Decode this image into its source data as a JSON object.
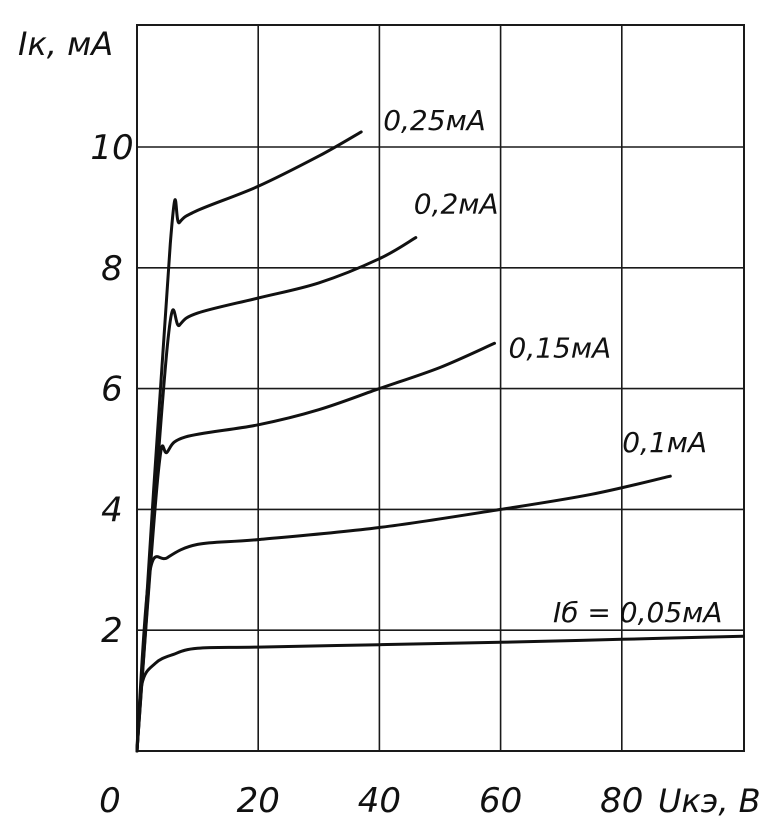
{
  "chart_data": {
    "type": "line",
    "ylabel": "Iк, мA",
    "xlabel": "Uкэ, B",
    "origin_label": "0",
    "xlim": [
      0,
      100
    ],
    "ylim": [
      0,
      12
    ],
    "x_ticks": [
      20,
      40,
      60,
      80
    ],
    "x_tick_labels": [
      "20",
      "40",
      "60",
      "80"
    ],
    "y_ticks": [
      2,
      4,
      6,
      8,
      10
    ],
    "y_tick_labels": [
      "2",
      "4",
      "6",
      "8",
      "10"
    ],
    "grid": true,
    "legend": "labels at curve ends",
    "series": [
      {
        "name": "Iб = 0,05мA",
        "points": [
          [
            0,
            0
          ],
          [
            0.8,
            1.1
          ],
          [
            3,
            1.45
          ],
          [
            6,
            1.6
          ],
          [
            10,
            1.7
          ],
          [
            20,
            1.72
          ],
          [
            40,
            1.76
          ],
          [
            60,
            1.8
          ],
          [
            80,
            1.85
          ],
          [
            100,
            1.9
          ]
        ]
      },
      {
        "name": "0,1мA",
        "points": [
          [
            0,
            0
          ],
          [
            2,
            2.9
          ],
          [
            5,
            3.2
          ],
          [
            10,
            3.42
          ],
          [
            20,
            3.5
          ],
          [
            40,
            3.7
          ],
          [
            60,
            4.0
          ],
          [
            75,
            4.25
          ],
          [
            88,
            4.55
          ]
        ]
      },
      {
        "name": "0,15мA",
        "points": [
          [
            0,
            0
          ],
          [
            3.5,
            4.6
          ],
          [
            5,
            4.95
          ],
          [
            8,
            5.2
          ],
          [
            20,
            5.4
          ],
          [
            30,
            5.65
          ],
          [
            40,
            6.0
          ],
          [
            50,
            6.35
          ],
          [
            59,
            6.75
          ]
        ]
      },
      {
        "name": "0,2мA",
        "points": [
          [
            0,
            0
          ],
          [
            5,
            6.7
          ],
          [
            7,
            7.05
          ],
          [
            10,
            7.25
          ],
          [
            20,
            7.5
          ],
          [
            30,
            7.75
          ],
          [
            40,
            8.15
          ],
          [
            46,
            8.5
          ]
        ]
      },
      {
        "name": "0,25мA",
        "points": [
          [
            0,
            0
          ],
          [
            5.5,
            8.4
          ],
          [
            7,
            8.75
          ],
          [
            10,
            8.95
          ],
          [
            20,
            9.35
          ],
          [
            30,
            9.85
          ],
          [
            37,
            10.25
          ]
        ]
      }
    ]
  }
}
